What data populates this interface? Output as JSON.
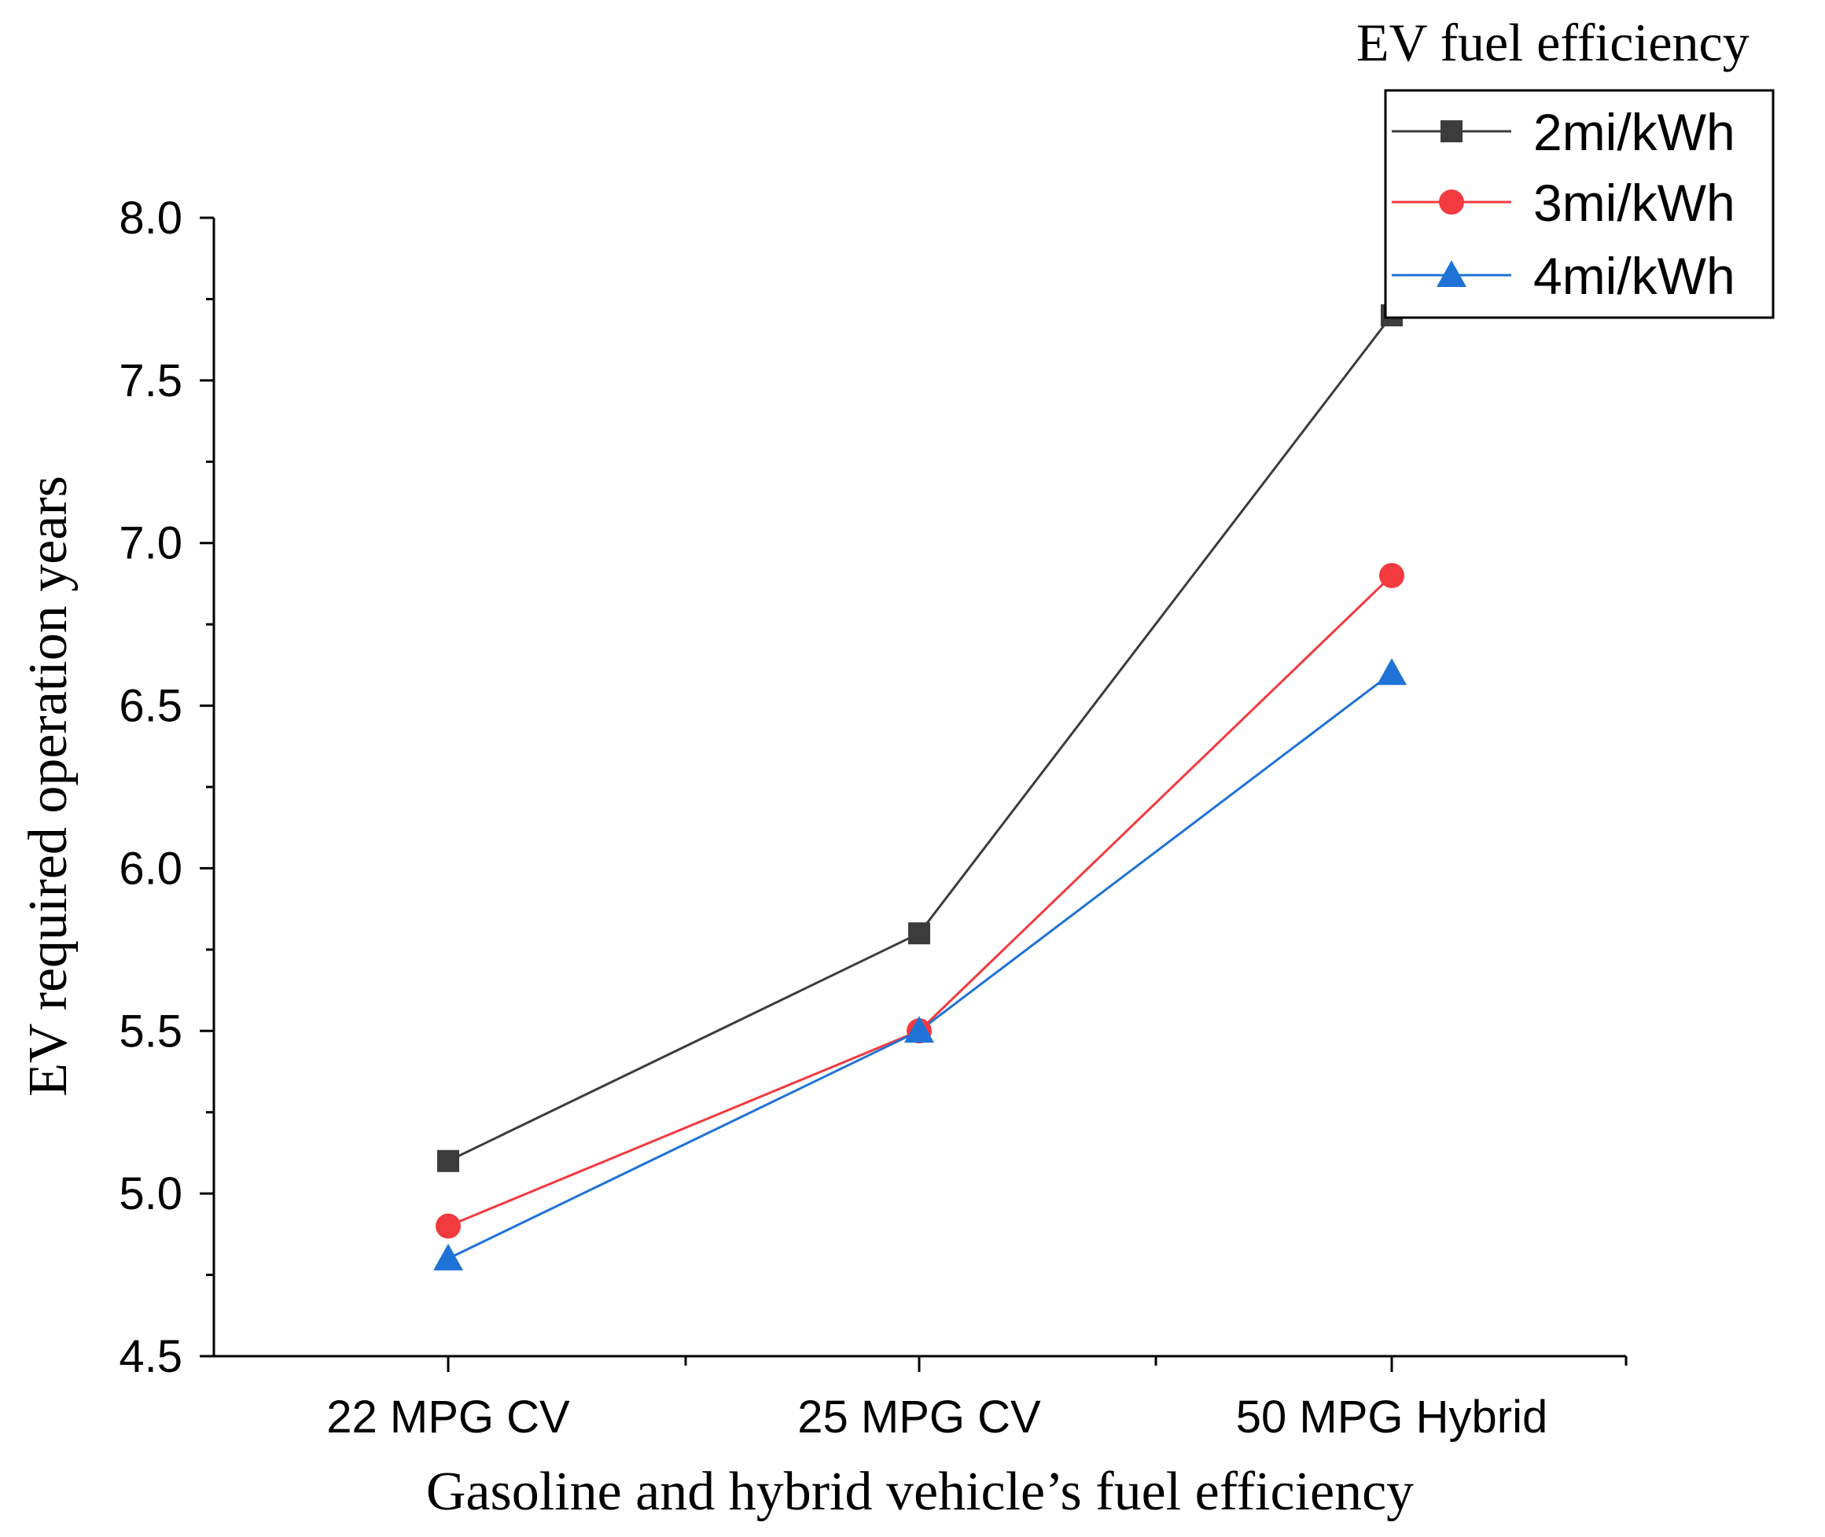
{
  "chart_data": {
    "type": "line",
    "title": "",
    "xlabel": "Gasoline and hybrid vehicle’s fuel efficiency",
    "ylabel": "EV required operation years",
    "categories": [
      "22 MPG CV",
      "25 MPG CV",
      "50 MPG Hybrid"
    ],
    "ylim": [
      4.5,
      8.0
    ],
    "yticks": [
      4.5,
      5.0,
      5.5,
      6.0,
      6.5,
      7.0,
      7.5,
      8.0
    ],
    "ytick_labels": [
      "4.5",
      "5.0",
      "5.5",
      "6.0",
      "6.5",
      "7.0",
      "7.5",
      "8.0"
    ],
    "grid": false,
    "legend": {
      "title": "EV fuel efficiency",
      "placement": "top-right"
    },
    "series": [
      {
        "name": "2mi/kWh",
        "values": [
          5.1,
          5.8,
          7.7
        ],
        "color": "#3c3c3c",
        "marker": "square"
      },
      {
        "name": "3mi/kWh",
        "values": [
          4.9,
          5.5,
          6.9
        ],
        "color": "#f23a3f",
        "marker": "circle"
      },
      {
        "name": "4mi/kWh",
        "values": [
          4.8,
          5.5,
          6.6
        ],
        "color": "#1f73d6",
        "marker": "triangle"
      }
    ]
  }
}
